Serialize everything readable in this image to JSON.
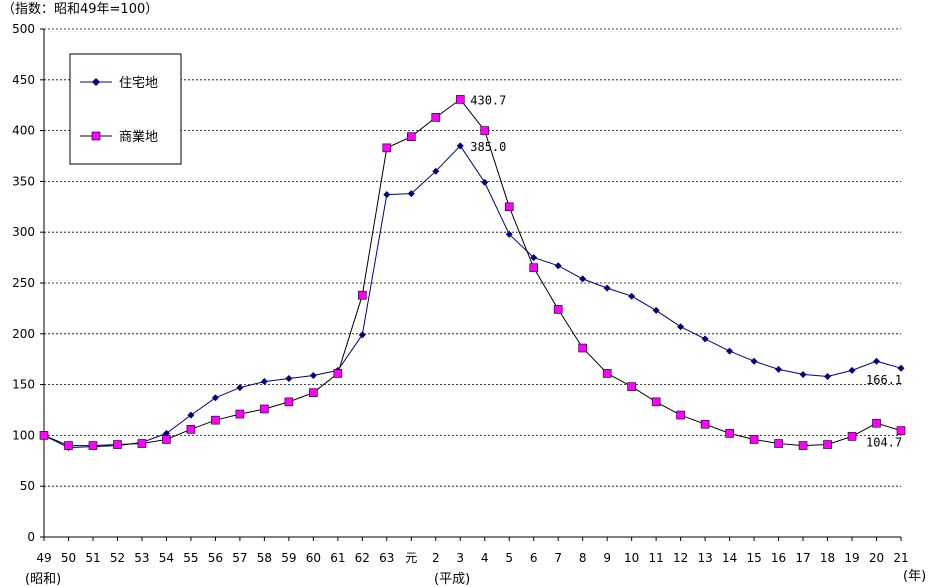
{
  "chart_data": {
    "type": "line",
    "unit_label": "（指数：昭和49年=100）",
    "era_labels": {
      "showa": "(昭和)",
      "heisei": "(平成)",
      "year": "(年)"
    },
    "categories": [
      "49",
      "50",
      "51",
      "52",
      "53",
      "54",
      "55",
      "56",
      "57",
      "58",
      "59",
      "60",
      "61",
      "62",
      "63",
      "元",
      "2",
      "3",
      "4",
      "5",
      "6",
      "7",
      "8",
      "9",
      "10",
      "11",
      "12",
      "13",
      "14",
      "15",
      "16",
      "17",
      "18",
      "19",
      "20",
      "21"
    ],
    "ylim": [
      0,
      500
    ],
    "yticks": [
      0,
      50,
      100,
      150,
      200,
      250,
      300,
      350,
      400,
      450,
      500
    ],
    "grid": "horizontal-dashed",
    "legend_position": "top-left",
    "series": [
      {
        "name": "住宅地",
        "color": "#000080",
        "marker": "diamond",
        "values": [
          100,
          88,
          89,
          90,
          93,
          102,
          120,
          137,
          147,
          153,
          156,
          159,
          164,
          199,
          337,
          338,
          360,
          385,
          349,
          298,
          275,
          267,
          254,
          245,
          237,
          223,
          207,
          195,
          183,
          173,
          165,
          160,
          158,
          164,
          173,
          166.1
        ],
        "point_labels": [
          {
            "index": 17,
            "text": "385.0"
          },
          {
            "index": 35,
            "text": "166.1"
          }
        ]
      },
      {
        "name": "商業地",
        "color": "#000000",
        "marker_color": "#FF00FF",
        "marker": "square",
        "values": [
          100,
          90,
          90,
          91,
          92,
          96,
          106,
          115,
          121,
          126,
          133,
          142,
          161,
          238,
          383,
          394,
          413,
          430.7,
          400,
          325,
          265,
          224,
          186,
          161,
          148,
          133,
          120,
          111,
          102,
          96,
          92,
          90,
          91,
          99,
          112,
          104.7
        ],
        "point_labels": [
          {
            "index": 17,
            "text": "430.7"
          },
          {
            "index": 35,
            "text": "104.7"
          }
        ]
      }
    ]
  }
}
